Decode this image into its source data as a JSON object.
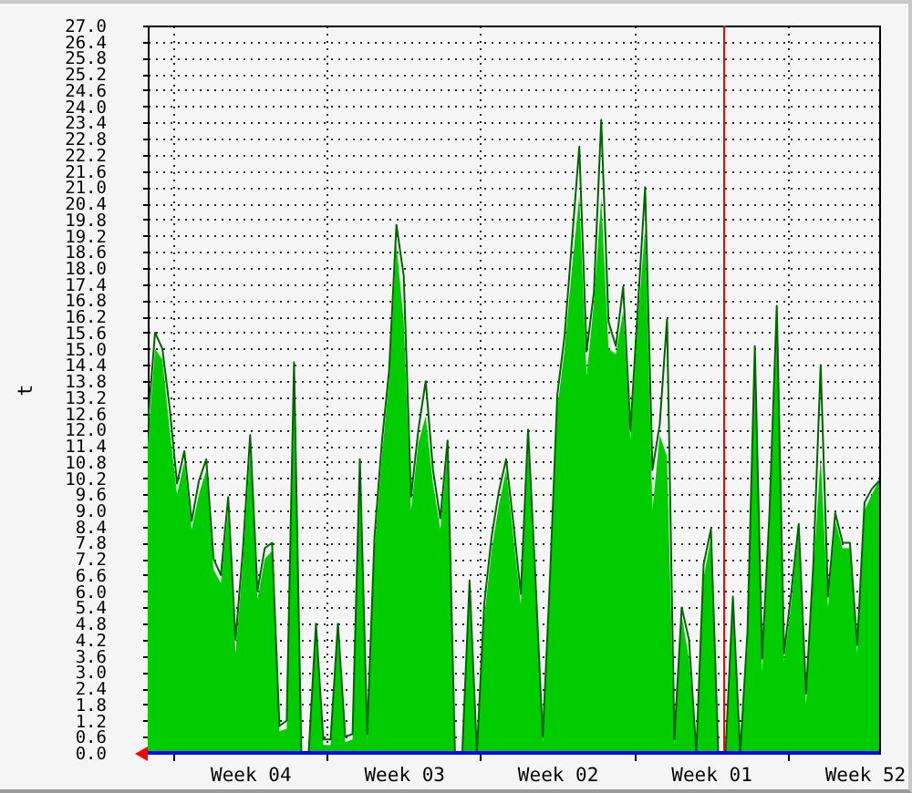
{
  "chart_data": {
    "type": "area",
    "ylabel": "t",
    "categories": [
      null,
      null,
      null,
      null,
      null,
      null,
      null,
      null,
      null,
      null,
      null,
      null,
      null,
      null,
      "Week 04",
      null,
      null,
      null,
      null,
      null,
      null,
      null,
      null,
      null,
      null,
      null,
      null,
      null,
      null,
      null,
      null,
      null,
      null,
      null,
      null,
      "Week 03",
      null,
      null,
      null,
      null,
      null,
      null,
      null,
      null,
      null,
      null,
      null,
      null,
      null,
      null,
      null,
      null,
      null,
      null,
      null,
      null,
      "Week 02",
      null,
      null,
      null,
      null,
      null,
      null,
      null,
      null,
      null,
      null,
      null,
      null,
      null,
      null,
      null,
      null,
      null,
      null,
      null,
      null,
      "Week 01",
      null,
      null,
      null,
      null,
      null,
      null,
      null,
      null,
      null,
      null,
      null,
      null,
      null,
      null,
      null,
      null,
      null,
      null,
      null,
      null,
      "Week 52",
      null,
      null
    ],
    "series": [
      {
        "color": "#00cc00",
        "values": [
          11.5,
          15.0,
          14.6,
          12.0,
          9.6,
          10.8,
          8.3,
          9.6,
          10.5,
          6.8,
          6.3,
          9.0,
          3.7,
          7.0,
          11.2,
          5.7,
          7.2,
          7.5,
          0.8,
          0.9,
          13.2,
          0.0,
          0.0,
          4.5,
          0.3,
          0.3,
          4.5,
          0.4,
          0.5,
          10.5,
          0.5,
          7.5,
          11.0,
          13.8,
          18.9,
          16.0,
          9.0,
          11.5,
          12.5,
          10.0,
          8.3,
          11.2,
          0.0,
          0.0,
          6.0,
          0.0,
          5.0,
          7.5,
          9.2,
          10.5,
          8.0,
          5.5,
          11.5,
          6.0,
          0.4,
          6.0,
          12.8,
          15.0,
          18.0,
          20.7,
          14.0,
          16.7,
          20.6,
          15.0,
          14.8,
          16.4,
          11.6,
          16.0,
          19.5,
          9.0,
          11.8,
          11.0,
          0.3,
          5.1,
          3.5,
          0.0,
          6.5,
          8.0,
          0.0,
          0.0,
          5.5,
          0.0,
          4.0,
          14.4,
          3.0,
          8.5,
          15.7,
          3.4,
          5.6,
          8.3,
          1.8,
          6.7,
          11.0,
          5.4,
          8.6,
          7.6,
          7.6,
          3.7,
          9.0,
          9.6,
          10.1
        ]
      },
      {
        "type": "line",
        "color": "#006400",
        "values": [
          12.2,
          15.6,
          15.0,
          12.8,
          10.0,
          11.2,
          8.6,
          10.1,
          10.9,
          7.2,
          6.6,
          9.5,
          4.2,
          7.5,
          11.8,
          6.0,
          7.6,
          7.8,
          1.0,
          1.2,
          14.5,
          0.0,
          0.0,
          4.8,
          0.5,
          0.5,
          4.8,
          0.6,
          0.7,
          10.9,
          0.7,
          8.0,
          11.5,
          14.2,
          19.6,
          17.7,
          9.5,
          12.0,
          13.8,
          10.5,
          8.7,
          11.6,
          0.0,
          0.0,
          6.4,
          0.0,
          5.5,
          8.0,
          9.7,
          10.9,
          8.5,
          5.9,
          12.0,
          6.5,
          0.6,
          6.5,
          13.3,
          15.5,
          19.0,
          22.5,
          14.9,
          17.1,
          23.5,
          16.0,
          15.1,
          17.3,
          12.0,
          16.5,
          21.0,
          10.5,
          12.2,
          16.1,
          0.5,
          5.4,
          4.2,
          0.0,
          7.0,
          8.3,
          0.0,
          0.0,
          5.8,
          0.0,
          4.5,
          15.1,
          3.5,
          8.9,
          16.6,
          3.7,
          6.0,
          8.5,
          2.2,
          7.0,
          14.4,
          5.8,
          8.9,
          7.8,
          7.8,
          4.0,
          9.3,
          9.8,
          10.1
        ]
      }
    ],
    "ylim": [
      0,
      27
    ],
    "yticks": [
      {
        "value": 0,
        "label": "0.0"
      },
      0.6,
      1.2,
      1.8,
      2.4,
      {
        "value": 3,
        "label": "3.0"
      },
      3.6,
      4.2,
      4.8,
      5.4,
      {
        "value": 6,
        "label": "6.0"
      },
      6.6,
      7.2,
      7.8,
      8.4,
      {
        "value": 9,
        "label": "9.0"
      },
      9.6,
      10.2,
      10.8,
      11.4,
      {
        "value": 12,
        "label": "12.0"
      },
      12.6,
      13.2,
      13.8,
      14.4,
      {
        "value": 15,
        "label": "15.0"
      },
      15.6,
      16.2,
      16.8,
      17.4,
      {
        "value": 18,
        "label": "18.0"
      },
      18.6,
      19.2,
      19.8,
      20.4,
      {
        "value": 21,
        "label": "21.0"
      },
      21.6,
      22.2,
      22.8,
      23.4,
      {
        "value": 24,
        "label": "24.0"
      },
      24.6,
      25.2,
      25.8,
      26.4,
      {
        "value": 27,
        "label": "27.0"
      }
    ],
    "grid": true,
    "ref_lines": [
      {
        "axis": "y",
        "value": 0,
        "color": "#0000ff"
      }
    ]
  }
}
